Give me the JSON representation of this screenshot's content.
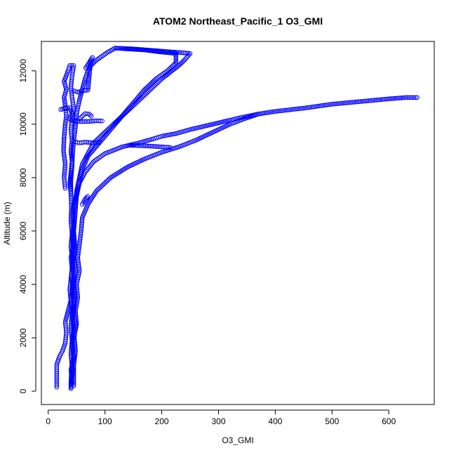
{
  "chart_data": {
    "type": "scatter",
    "title": "ATOM2 Northeast_Pacific_1 O3_GMI",
    "xlabel": "O3_GMI",
    "ylabel": "Altitude (m)",
    "xlim": [
      -12,
      680
    ],
    "ylim": [
      -500,
      13100
    ],
    "xticks": [
      0,
      100,
      200,
      300,
      400,
      500,
      600
    ],
    "yticks": [
      0,
      2000,
      4000,
      6000,
      8000,
      10000,
      12000
    ],
    "grid": false,
    "marker_color": "#0000ff",
    "marker": "open-circle",
    "series": [
      {
        "points": [
          [
            15,
            150
          ],
          [
            15,
            600
          ],
          [
            15,
            1000
          ],
          [
            20,
            1300
          ],
          [
            25,
            1500
          ],
          [
            30,
            1800
          ],
          [
            32,
            2200
          ],
          [
            30,
            2600
          ],
          [
            35,
            3000
          ],
          [
            40,
            3400
          ],
          [
            38,
            3800
          ],
          [
            40,
            4200
          ],
          [
            42,
            4600
          ],
          [
            40,
            5000
          ],
          [
            44,
            5400
          ],
          [
            42,
            5800
          ],
          [
            45,
            6200
          ],
          [
            43,
            6600
          ],
          [
            45,
            7000
          ],
          [
            50,
            7400
          ],
          [
            55,
            7800
          ],
          [
            65,
            8200
          ],
          [
            80,
            8600
          ],
          [
            100,
            8900
          ],
          [
            130,
            9150
          ],
          [
            160,
            9300
          ],
          [
            185,
            9450
          ],
          [
            200,
            9550
          ],
          [
            225,
            9650
          ],
          [
            250,
            9800
          ],
          [
            280,
            9950
          ],
          [
            320,
            10150
          ],
          [
            340,
            10250
          ],
          [
            370,
            10380
          ],
          [
            400,
            10480
          ],
          [
            450,
            10600
          ],
          [
            500,
            10750
          ],
          [
            550,
            10850
          ],
          [
            600,
            10950
          ],
          [
            630,
            11000
          ],
          [
            650,
            11000
          ]
        ]
      },
      {
        "points": [
          [
            40,
            100
          ],
          [
            42,
            500
          ],
          [
            45,
            1000
          ],
          [
            48,
            1500
          ],
          [
            45,
            2000
          ],
          [
            50,
            2500
          ],
          [
            48,
            3000
          ],
          [
            52,
            3500
          ],
          [
            50,
            4000
          ],
          [
            55,
            4500
          ],
          [
            52,
            5000
          ],
          [
            55,
            5500
          ],
          [
            58,
            6000
          ],
          [
            60,
            6500
          ],
          [
            70,
            7000
          ],
          [
            85,
            7500
          ],
          [
            110,
            8000
          ],
          [
            140,
            8400
          ],
          [
            170,
            8700
          ],
          [
            200,
            8950
          ],
          [
            230,
            9150
          ],
          [
            260,
            9400
          ],
          [
            290,
            9700
          ],
          [
            320,
            10000
          ],
          [
            345,
            10200
          ],
          [
            370,
            10380
          ]
        ]
      },
      {
        "points": [
          [
            42,
            300
          ],
          [
            40,
            800
          ],
          [
            45,
            1300
          ],
          [
            42,
            1800
          ],
          [
            45,
            2300
          ],
          [
            43,
            2800
          ],
          [
            45,
            3300
          ],
          [
            42,
            3800
          ],
          [
            45,
            4300
          ],
          [
            43,
            4800
          ],
          [
            46,
            5300
          ],
          [
            44,
            5800
          ],
          [
            46,
            6300
          ],
          [
            48,
            6800
          ],
          [
            50,
            7300
          ],
          [
            55,
            7800
          ],
          [
            60,
            8300
          ],
          [
            70,
            8800
          ],
          [
            90,
            9300
          ],
          [
            110,
            9800
          ],
          [
            130,
            10300
          ],
          [
            150,
            10800
          ],
          [
            170,
            11300
          ],
          [
            190,
            11700
          ],
          [
            210,
            12000
          ],
          [
            225,
            12300
          ],
          [
            225,
            12650
          ],
          [
            200,
            12700
          ],
          [
            170,
            12780
          ],
          [
            140,
            12820
          ],
          [
            118,
            12850
          ]
        ]
      },
      {
        "points": [
          [
            118,
            12850
          ],
          [
            105,
            12700
          ],
          [
            95,
            12550
          ],
          [
            85,
            12400
          ],
          [
            75,
            12200
          ],
          [
            70,
            12000
          ],
          [
            65,
            11700
          ],
          [
            60,
            11300
          ],
          [
            55,
            10900
          ],
          [
            50,
            10400
          ],
          [
            48,
            9900
          ],
          [
            45,
            9400
          ],
          [
            43,
            8900
          ],
          [
            42,
            8400
          ],
          [
            40,
            7900
          ],
          [
            40,
            7400
          ],
          [
            41,
            6900
          ],
          [
            40,
            6400
          ],
          [
            42,
            5900
          ],
          [
            40,
            5400
          ],
          [
            43,
            4900
          ],
          [
            41,
            4400
          ],
          [
            43,
            3900
          ],
          [
            40,
            3400
          ],
          [
            42,
            2900
          ],
          [
            40,
            2400
          ],
          [
            42,
            1900
          ],
          [
            40,
            1400
          ],
          [
            42,
            900
          ],
          [
            40,
            400
          ],
          [
            40,
            150
          ]
        ]
      },
      {
        "points": [
          [
            118,
            12850
          ],
          [
            150,
            12820
          ],
          [
            180,
            12770
          ],
          [
            210,
            12720
          ],
          [
            235,
            12680
          ],
          [
            250,
            12650
          ],
          [
            240,
            12400
          ],
          [
            230,
            12200
          ],
          [
            215,
            11950
          ],
          [
            200,
            11700
          ],
          [
            185,
            11400
          ],
          [
            170,
            11100
          ],
          [
            155,
            10800
          ],
          [
            140,
            10500
          ],
          [
            125,
            10200
          ],
          [
            110,
            9900
          ],
          [
            95,
            9600
          ],
          [
            80,
            9300
          ],
          [
            70,
            8900
          ],
          [
            60,
            8500
          ],
          [
            55,
            8000
          ],
          [
            50,
            7500
          ],
          [
            48,
            7000
          ],
          [
            47,
            6500
          ],
          [
            45,
            6000
          ],
          [
            47,
            5500
          ],
          [
            45,
            5000
          ],
          [
            48,
            4500
          ],
          [
            45,
            4000
          ],
          [
            48,
            3500
          ],
          [
            45,
            3000
          ],
          [
            48,
            2500
          ],
          [
            46,
            2000
          ],
          [
            48,
            1500
          ],
          [
            45,
            1000
          ],
          [
            45,
            500
          ],
          [
            45,
            200
          ]
        ]
      },
      {
        "points": [
          [
            30,
            7600
          ],
          [
            28,
            8000
          ],
          [
            30,
            8500
          ],
          [
            27,
            9000
          ],
          [
            28,
            9500
          ],
          [
            30,
            10000
          ],
          [
            32,
            10300
          ],
          [
            30,
            10700
          ],
          [
            28,
            11000
          ],
          [
            32,
            11300
          ],
          [
            28,
            11600
          ],
          [
            35,
            12000
          ],
          [
            38,
            12200
          ],
          [
            45,
            12200
          ],
          [
            42,
            11800
          ],
          [
            40,
            11400
          ],
          [
            42,
            11000
          ],
          [
            45,
            10600
          ],
          [
            42,
            10200
          ],
          [
            40,
            9800
          ],
          [
            42,
            9400
          ],
          [
            40,
            9000
          ],
          [
            42,
            8600
          ],
          [
            40,
            8200
          ],
          [
            38,
            7800
          ],
          [
            40,
            7400
          ]
        ]
      },
      {
        "points": [
          [
            45,
            11250
          ],
          [
            52,
            11200
          ],
          [
            60,
            11250
          ],
          [
            70,
            11280
          ],
          [
            75,
            12400
          ],
          [
            78,
            12500
          ],
          [
            72,
            12300
          ],
          [
            66,
            12100
          ]
        ]
      },
      {
        "points": [
          [
            22,
            10550
          ],
          [
            30,
            10600
          ],
          [
            38,
            10620
          ],
          [
            42,
            10400
          ],
          [
            38,
            10200
          ]
        ]
      },
      {
        "points": [
          [
            40,
            10150
          ],
          [
            55,
            10100
          ],
          [
            70,
            10100
          ],
          [
            85,
            10130
          ],
          [
            95,
            10120
          ]
        ]
      },
      {
        "points": [
          [
            45,
            9350
          ],
          [
            55,
            9300
          ],
          [
            65,
            9330
          ],
          [
            80,
            9300
          ],
          [
            90,
            9330
          ]
        ]
      },
      {
        "points": [
          [
            55,
            10200
          ],
          [
            60,
            10300
          ],
          [
            65,
            10400
          ],
          [
            72,
            10380
          ],
          [
            76,
            10300
          ]
        ]
      },
      {
        "points": [
          [
            142,
            9210
          ],
          [
            160,
            9200
          ],
          [
            180,
            9180
          ],
          [
            200,
            9150
          ],
          [
            215,
            9130
          ]
        ]
      },
      {
        "points": [
          [
            60,
            7000
          ],
          [
            65,
            7200
          ],
          [
            70,
            7300
          ],
          [
            65,
            7050
          ]
        ]
      }
    ]
  }
}
